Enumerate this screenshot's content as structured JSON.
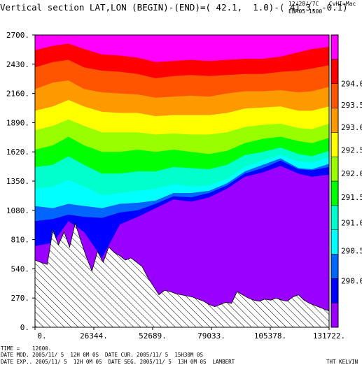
{
  "header": {
    "title": "Vertical section LAT,LON (BEGIN)-(END)=( 42.1,  1.0)-( 41.3, -0.1)",
    "right_line1": "12/28//7C   CvHI=Mac",
    "right_line2": "EBR05 1500"
  },
  "footer": {
    "time": "TIME =    12600.",
    "line1": "DATE MOD. 2005/11/ 5  12H 0M 0S  DATE CUR. 2005/11/ 5  15H30M 0S",
    "line2": "DATE EXP.. 2005/11/ 5  12H 0M 0S  DATE SEG. 2005/11/ 5  13H 0M 0S  LAMBERT",
    "field": "THT KELVIN"
  },
  "colors": {
    "below_289_75": "#9900ff",
    "c290_0": "#0000ff",
    "c290_5": "#0066ff",
    "c290_75": "#00ffff",
    "c291_0": "#00ffcc",
    "c291_5": "#00ff00",
    "c292_0": "#99ff00",
    "c292_5": "#ffff00",
    "c293_0": "#ff9900",
    "c293_5": "#ff5500",
    "c294_0": "#ff0000",
    "above": "#ff00ff",
    "terrain_hatch": "#000000"
  },
  "chart_data": {
    "type": "contour_section",
    "xlabel": "",
    "ylabel": "",
    "x_ticks": [
      "0.",
      "26344.",
      "52689.",
      "79033.",
      "105378.",
      "131722."
    ],
    "x_tick_values": [
      0,
      26344,
      52689,
      79033,
      105378,
      131722
    ],
    "y_ticks": [
      "0.",
      "270.",
      "540.",
      "810.",
      "1080.",
      "1350.",
      "1620.",
      "1890.",
      "2160.",
      "2430.",
      "2700."
    ],
    "y_tick_values": [
      0,
      270,
      540,
      810,
      1080,
      1350,
      1620,
      1890,
      2160,
      2430,
      2700
    ],
    "xlim": [
      0,
      131722
    ],
    "ylim": [
      0,
      2700
    ],
    "colorbar": {
      "labels": [
        "290.0",
        "290.5",
        "291.0",
        "291.5",
        "292.0",
        "292.5",
        "293.0",
        "293.5",
        "294.0"
      ],
      "bands": [
        {
          "label": "",
          "color": "#9900ff"
        },
        {
          "label": "290.0",
          "color": "#0000ff"
        },
        {
          "label": "",
          "color": "#0066ff"
        },
        {
          "label": "290.5",
          "color": "#00ffff"
        },
        {
          "label": "291.0",
          "color": "#00ffcc"
        },
        {
          "label": "291.5",
          "color": "#00ff00"
        },
        {
          "label": "292.0",
          "color": "#99ff00"
        },
        {
          "label": "292.5",
          "color": "#ffff00"
        },
        {
          "label": "293.0",
          "color": "#ff9900"
        },
        {
          "label": "293.5",
          "color": "#ff5500"
        },
        {
          "label": "294.0",
          "color": "#ff0000"
        },
        {
          "label": "",
          "color": "#ff00ff"
        }
      ]
    },
    "terrain": {
      "x": [
        0,
        2500,
        5500,
        8000,
        10500,
        13000,
        15500,
        18000,
        20500,
        23000,
        25500,
        28000,
        30500,
        33000,
        35500,
        38000,
        40500,
        43000,
        45500,
        48000,
        50500,
        53000,
        55500,
        58000,
        60500,
        63000,
        65500,
        68000,
        70500,
        73000,
        75500,
        78000,
        80500,
        83000,
        85500,
        88000,
        90500,
        93000,
        95500,
        98000,
        100500,
        103000,
        105500,
        108000,
        110500,
        113000,
        115500,
        118000,
        120500,
        123000,
        125500,
        128000,
        131722
      ],
      "height": [
        620,
        600,
        580,
        900,
        760,
        880,
        740,
        960,
        800,
        650,
        520,
        700,
        600,
        740,
        690,
        660,
        620,
        640,
        600,
        560,
        460,
        380,
        300,
        340,
        330,
        310,
        300,
        290,
        280,
        260,
        240,
        210,
        190,
        210,
        230,
        220,
        330,
        300,
        270,
        250,
        240,
        260,
        250,
        270,
        250,
        240,
        280,
        300,
        250,
        220,
        200,
        180,
        150
      ]
    },
    "isentrope_heights": {
      "x": [
        0,
        8000,
        15000,
        22000,
        30000,
        38000,
        46000,
        54000,
        62000,
        70000,
        78000,
        86000,
        94000,
        102000,
        110000,
        118000,
        124000,
        131722
      ],
      "theta_290_0": [
        750,
        780,
        980,
        880,
        640,
        950,
        1020,
        1100,
        1180,
        1160,
        1200,
        1280,
        1390,
        1430,
        1490,
        1420,
        1390,
        1410
      ],
      "theta_290_5": [
        980,
        1000,
        1040,
        1020,
        1010,
        1060,
        1080,
        1140,
        1210,
        1200,
        1240,
        1310,
        1420,
        1470,
        1540,
        1460,
        1450,
        1480
      ],
      "theta_290_75": [
        1120,
        1100,
        1140,
        1120,
        1100,
        1140,
        1150,
        1170,
        1240,
        1240,
        1260,
        1330,
        1440,
        1500,
        1560,
        1470,
        1460,
        1510
      ],
      "theta_291_0": [
        1280,
        1300,
        1360,
        1300,
        1220,
        1240,
        1260,
        1280,
        1320,
        1300,
        1310,
        1370,
        1480,
        1540,
        1590,
        1530,
        1520,
        1570
      ],
      "theta_291_5": [
        1480,
        1500,
        1580,
        1500,
        1420,
        1420,
        1440,
        1440,
        1480,
        1470,
        1460,
        1500,
        1590,
        1620,
        1660,
        1600,
        1580,
        1630
      ],
      "theta_292_0": [
        1640,
        1680,
        1760,
        1680,
        1620,
        1620,
        1640,
        1620,
        1640,
        1620,
        1600,
        1630,
        1700,
        1740,
        1760,
        1720,
        1700,
        1750
      ],
      "theta_292_5": [
        1820,
        1860,
        1920,
        1860,
        1800,
        1800,
        1800,
        1780,
        1790,
        1780,
        1780,
        1800,
        1850,
        1870,
        1880,
        1840,
        1830,
        1880
      ],
      "theta_293_0": [
        2000,
        2040,
        2100,
        2040,
        1990,
        1980,
        1980,
        1950,
        1960,
        1960,
        1960,
        1980,
        2020,
        2030,
        2040,
        2000,
        2000,
        2040
      ],
      "theta_293_5": [
        2200,
        2260,
        2280,
        2200,
        2170,
        2160,
        2150,
        2120,
        2130,
        2140,
        2130,
        2160,
        2180,
        2180,
        2190,
        2170,
        2180,
        2220
      ],
      "theta_294_0": [
        2400,
        2450,
        2470,
        2400,
        2370,
        2360,
        2340,
        2300,
        2320,
        2330,
        2320,
        2330,
        2340,
        2340,
        2360,
        2370,
        2390,
        2420
      ],
      "theta_294_5": [
        2560,
        2600,
        2620,
        2570,
        2520,
        2510,
        2490,
        2450,
        2460,
        2470,
        2460,
        2470,
        2480,
        2480,
        2500,
        2540,
        2570,
        2590
      ]
    }
  }
}
